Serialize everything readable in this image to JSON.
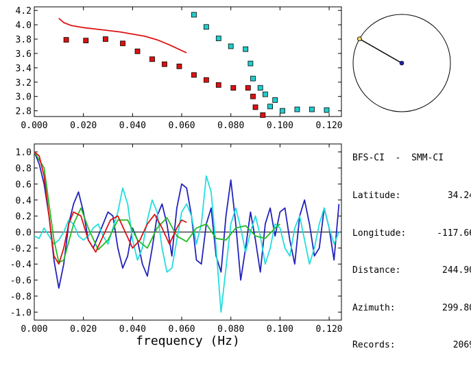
{
  "station": {
    "pair": "BFS-CI  -  SMM-CI",
    "rows": [
      {
        "label": "Latitude:",
        "value": "34.24"
      },
      {
        "label": "Longitude:",
        "value": "-117.66"
      },
      {
        "label": "Distance:",
        "value": "244.90"
      },
      {
        "label": "Azimuth:",
        "value": "299.80"
      },
      {
        "label": "Records:",
        "value": "2069"
      }
    ],
    "azimuth_deg": 299.8
  },
  "chart_data": [
    {
      "type": "scatter",
      "xlim": [
        0.0,
        0.125
      ],
      "ylim": [
        2.72,
        4.25
      ],
      "xticks": [
        "0.000",
        "0.020",
        "0.040",
        "0.060",
        "0.080",
        "0.100",
        "0.120"
      ],
      "yticks": [
        "2.8",
        "3.0",
        "3.2",
        "3.4",
        "3.6",
        "3.8",
        "4.0",
        "4.2"
      ],
      "series": [
        {
          "color": "#dd1111",
          "marker": "square",
          "x": [
            0.013,
            0.021,
            0.029,
            0.036,
            0.042,
            0.048,
            0.053,
            0.059,
            0.065,
            0.07,
            0.075,
            0.081,
            0.087,
            0.089,
            0.09,
            0.093
          ],
          "y": [
            3.79,
            3.78,
            3.8,
            3.74,
            3.63,
            3.52,
            3.45,
            3.42,
            3.3,
            3.23,
            3.16,
            3.12,
            3.12,
            3.0,
            2.85,
            2.74
          ]
        },
        {
          "color": "#22cccc",
          "marker": "square",
          "x": [
            0.065,
            0.07,
            0.075,
            0.08,
            0.086,
            0.088,
            0.089,
            0.092,
            0.094,
            0.096,
            0.098,
            0.101,
            0.107,
            0.113,
            0.119
          ],
          "y": [
            4.14,
            3.97,
            3.81,
            3.7,
            3.66,
            3.46,
            3.25,
            3.12,
            3.03,
            2.86,
            2.95,
            2.8,
            2.82,
            2.82,
            2.81
          ]
        },
        {
          "color": "#dd1111",
          "marker": "line",
          "x": [
            0.01,
            0.012,
            0.015,
            0.02,
            0.025,
            0.03,
            0.035,
            0.04,
            0.045,
            0.05,
            0.055,
            0.06,
            0.062
          ],
          "y": [
            4.09,
            4.03,
            3.99,
            3.96,
            3.94,
            3.92,
            3.9,
            3.87,
            3.84,
            3.79,
            3.72,
            3.64,
            3.61
          ]
        }
      ]
    },
    {
      "type": "line",
      "xlabel": "frequency (Hz)",
      "xlim": [
        0.0,
        0.125
      ],
      "ylim": [
        -1.1,
        1.1
      ],
      "xticks": [
        "0.000",
        "0.020",
        "0.040",
        "0.060",
        "0.080",
        "0.100",
        "0.120"
      ],
      "yticks": [
        "1.0",
        "0.8",
        "0.6",
        "0.4",
        "0.2",
        "0.0",
        "-0.2",
        "-0.4",
        "-0.6",
        "-0.8",
        "-1.0"
      ],
      "series": [
        {
          "color": "#2222bb",
          "x": [
            0.0,
            0.002,
            0.004,
            0.006,
            0.008,
            0.01,
            0.012,
            0.014,
            0.016,
            0.018,
            0.02,
            0.022,
            0.024,
            0.026,
            0.028,
            0.03,
            0.032,
            0.034,
            0.036,
            0.038,
            0.04,
            0.042,
            0.044,
            0.046,
            0.048,
            0.05,
            0.052,
            0.054,
            0.056,
            0.058,
            0.06,
            0.062,
            0.064,
            0.066,
            0.068,
            0.07,
            0.072,
            0.074,
            0.076,
            0.078,
            0.08,
            0.082,
            0.084,
            0.086,
            0.088,
            0.09,
            0.092,
            0.094,
            0.096,
            0.098,
            0.1,
            0.102,
            0.104,
            0.106,
            0.108,
            0.11,
            0.112,
            0.114,
            0.116,
            0.118,
            0.12,
            0.122,
            0.124
          ],
          "y": [
            1.0,
            0.85,
            0.6,
            0.2,
            -0.35,
            -0.7,
            -0.4,
            0.1,
            0.35,
            0.5,
            0.25,
            -0.1,
            -0.2,
            -0.05,
            0.1,
            0.25,
            0.2,
            -0.2,
            -0.45,
            -0.3,
            0.05,
            -0.1,
            -0.4,
            -0.55,
            -0.2,
            0.2,
            0.35,
            0.1,
            -0.3,
            0.3,
            0.6,
            0.55,
            0.2,
            -0.35,
            -0.4,
            0.1,
            0.3,
            -0.3,
            -0.5,
            0.2,
            0.65,
            0.1,
            -0.6,
            -0.2,
            0.25,
            -0.1,
            -0.5,
            0.1,
            0.3,
            -0.05,
            0.25,
            0.3,
            -0.1,
            -0.4,
            0.2,
            0.4,
            0.1,
            -0.3,
            -0.2,
            0.3,
            0.05,
            -0.35,
            0.35
          ]
        },
        {
          "color": "#22dddd",
          "x": [
            0.0,
            0.002,
            0.004,
            0.006,
            0.008,
            0.01,
            0.012,
            0.014,
            0.016,
            0.018,
            0.02,
            0.022,
            0.024,
            0.026,
            0.028,
            0.03,
            0.032,
            0.034,
            0.036,
            0.038,
            0.04,
            0.042,
            0.044,
            0.046,
            0.048,
            0.05,
            0.052,
            0.054,
            0.056,
            0.058,
            0.06,
            0.062,
            0.064,
            0.066,
            0.068,
            0.07,
            0.072,
            0.074,
            0.076,
            0.078,
            0.08,
            0.082,
            0.084,
            0.086,
            0.088,
            0.09,
            0.092,
            0.094,
            0.096,
            0.098,
            0.1,
            0.102,
            0.104,
            0.106,
            0.108,
            0.11,
            0.112,
            0.114,
            0.116,
            0.118,
            0.12,
            0.122,
            0.124
          ],
          "y": [
            -0.05,
            -0.08,
            0.05,
            -0.05,
            -0.15,
            -0.1,
            0.0,
            0.15,
            0.1,
            -0.05,
            -0.1,
            -0.05,
            0.05,
            0.1,
            -0.05,
            -0.15,
            0.05,
            0.25,
            0.55,
            0.35,
            -0.1,
            -0.35,
            -0.2,
            0.15,
            0.4,
            0.25,
            -0.2,
            -0.5,
            -0.45,
            -0.1,
            0.25,
            0.35,
            0.2,
            -0.15,
            0.1,
            0.7,
            0.5,
            -0.2,
            -1.0,
            -0.45,
            0.1,
            0.3,
            0.05,
            -0.25,
            0.0,
            0.2,
            -0.05,
            -0.4,
            -0.2,
            0.1,
            0.05,
            -0.2,
            -0.3,
            0.05,
            0.2,
            -0.1,
            -0.4,
            -0.2,
            0.1,
            0.3,
            0.05,
            -0.15,
            0.0
          ]
        },
        {
          "color": "#22bb22",
          "x": [
            0.0,
            0.004,
            0.008,
            0.01,
            0.012,
            0.016,
            0.019,
            0.022,
            0.026,
            0.03,
            0.034,
            0.038,
            0.042,
            0.046,
            0.05,
            0.054,
            0.058,
            0.062,
            0.066,
            0.07,
            0.074,
            0.078,
            0.082,
            0.086,
            0.09,
            0.094,
            0.098,
            0.1
          ],
          "y": [
            1.0,
            0.8,
            -0.1,
            -0.38,
            -0.35,
            0.1,
            0.3,
            0.05,
            -0.22,
            -0.1,
            0.15,
            0.15,
            -0.1,
            -0.2,
            0.05,
            0.18,
            -0.05,
            -0.12,
            0.05,
            0.1,
            -0.08,
            -0.1,
            0.05,
            0.08,
            -0.05,
            -0.08,
            0.05,
            0.1
          ]
        },
        {
          "color": "#dd1111",
          "x": [
            0.0,
            0.002,
            0.004,
            0.006,
            0.008,
            0.01,
            0.012,
            0.014,
            0.016,
            0.019,
            0.022,
            0.025,
            0.028,
            0.031,
            0.034,
            0.037,
            0.04,
            0.043,
            0.046,
            0.049,
            0.052,
            0.055,
            0.058,
            0.06,
            0.062
          ],
          "y": [
            1.0,
            0.95,
            0.7,
            0.2,
            -0.3,
            -0.4,
            -0.2,
            0.1,
            0.25,
            0.2,
            -0.1,
            -0.25,
            -0.05,
            0.15,
            0.2,
            0.0,
            -0.2,
            -0.1,
            0.1,
            0.22,
            0.05,
            -0.15,
            0.05,
            0.15,
            0.12
          ]
        }
      ]
    }
  ]
}
